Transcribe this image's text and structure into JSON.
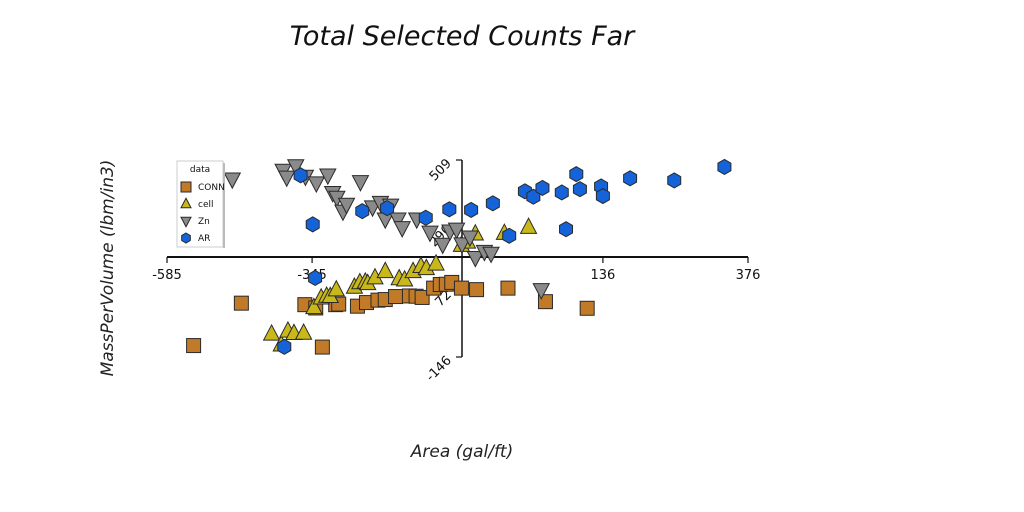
{
  "chart_data": {
    "type": "scatter",
    "title": "Total Selected Counts Far",
    "xlabel": "Area (gal/ft)",
    "ylabel": "MassPerVolume (lbm/in3)",
    "xlim": [
      -585,
      376
    ],
    "ylim": [
      -146,
      509
    ],
    "x_ticks": [
      "-585",
      "-345",
      "136",
      "376"
    ],
    "y_ticks": [
      "509",
      "290",
      "72",
      "-146"
    ],
    "legend": {
      "title": "data",
      "placement": "upper-left"
    },
    "series": [
      {
        "name": "CONN",
        "marker": "square",
        "color": "#c07a28",
        "points": [
          [
            -541,
            -108
          ],
          [
            -462,
            33
          ],
          [
            -357,
            28
          ],
          [
            -339,
            17
          ],
          [
            -328,
            -113
          ],
          [
            -306,
            28
          ],
          [
            -301,
            30
          ],
          [
            -270,
            23
          ],
          [
            -255,
            35
          ],
          [
            -236,
            43
          ],
          [
            -224,
            45
          ],
          [
            -207,
            55
          ],
          [
            -184,
            57
          ],
          [
            -173,
            56
          ],
          [
            -163,
            52
          ],
          [
            -144,
            83
          ],
          [
            -133,
            95
          ],
          [
            -123,
            96
          ],
          [
            -114,
            102
          ],
          [
            -98,
            83
          ],
          [
            -73,
            78
          ],
          [
            -21,
            83
          ],
          [
            41,
            38
          ],
          [
            110,
            16
          ]
        ]
      },
      {
        "name": "cell",
        "marker": "triangle-up",
        "color": "#c8b81a",
        "points": [
          [
            -412,
            -70
          ],
          [
            -396,
            -106
          ],
          [
            -385,
            -60
          ],
          [
            -375,
            -68
          ],
          [
            -359,
            -67
          ],
          [
            -342,
            18
          ],
          [
            -330,
            50
          ],
          [
            -321,
            56
          ],
          [
            -315,
            55
          ],
          [
            -305,
            77
          ],
          [
            -275,
            86
          ],
          [
            -266,
            101
          ],
          [
            -257,
            103
          ],
          [
            -253,
            98
          ],
          [
            -241,
            117
          ],
          [
            -224,
            138
          ],
          [
            -201,
            114
          ],
          [
            -192,
            110
          ],
          [
            -178,
            138
          ],
          [
            -165,
            155
          ],
          [
            -156,
            148
          ],
          [
            -140,
            163
          ],
          [
            -98,
            225
          ],
          [
            -88,
            236
          ],
          [
            -75,
            263
          ],
          [
            -27,
            265
          ],
          [
            13,
            285
          ]
        ]
      },
      {
        "name": "Zn",
        "marker": "triangle-down",
        "color": "#8a8a8a",
        "points": [
          [
            -477,
            446
          ],
          [
            -393,
            475
          ],
          [
            -387,
            452
          ],
          [
            -372,
            490
          ],
          [
            -356,
            455
          ],
          [
            -338,
            433
          ],
          [
            -319,
            459
          ],
          [
            -311,
            401
          ],
          [
            -304,
            385
          ],
          [
            -294,
            339
          ],
          [
            -288,
            362
          ],
          [
            -265,
            437
          ],
          [
            -245,
            353
          ],
          [
            -232,
            368
          ],
          [
            -224,
            313
          ],
          [
            -215,
            359
          ],
          [
            -203,
            313
          ],
          [
            -196,
            284
          ],
          [
            -172,
            313
          ],
          [
            -150,
            269
          ],
          [
            -129,
            229
          ],
          [
            -117,
            273
          ],
          [
            -106,
            279
          ],
          [
            -97,
            230
          ],
          [
            -84,
            253
          ],
          [
            -75,
            185
          ],
          [
            -60,
            205
          ],
          [
            -49,
            199
          ],
          [
            34,
            78
          ]
        ]
      },
      {
        "name": "AR",
        "marker": "hexagon",
        "color": "#1463d8",
        "points": [
          [
            -391,
            -112
          ],
          [
            -364,
            458
          ],
          [
            -344,
            295
          ],
          [
            -340,
            117
          ],
          [
            -262,
            339
          ],
          [
            -221,
            349
          ],
          [
            -157,
            317
          ],
          [
            -118,
            345
          ],
          [
            -82,
            343
          ],
          [
            -46,
            365
          ],
          [
            -19,
            257
          ],
          [
            7,
            405
          ],
          [
            21,
            387
          ],
          [
            36,
            416
          ],
          [
            68,
            401
          ],
          [
            75,
            279
          ],
          [
            92,
            462
          ],
          [
            98,
            412
          ],
          [
            133,
            421
          ],
          [
            136,
            389
          ],
          [
            181,
            448
          ],
          [
            254,
            441
          ],
          [
            337,
            486
          ]
        ]
      }
    ]
  }
}
